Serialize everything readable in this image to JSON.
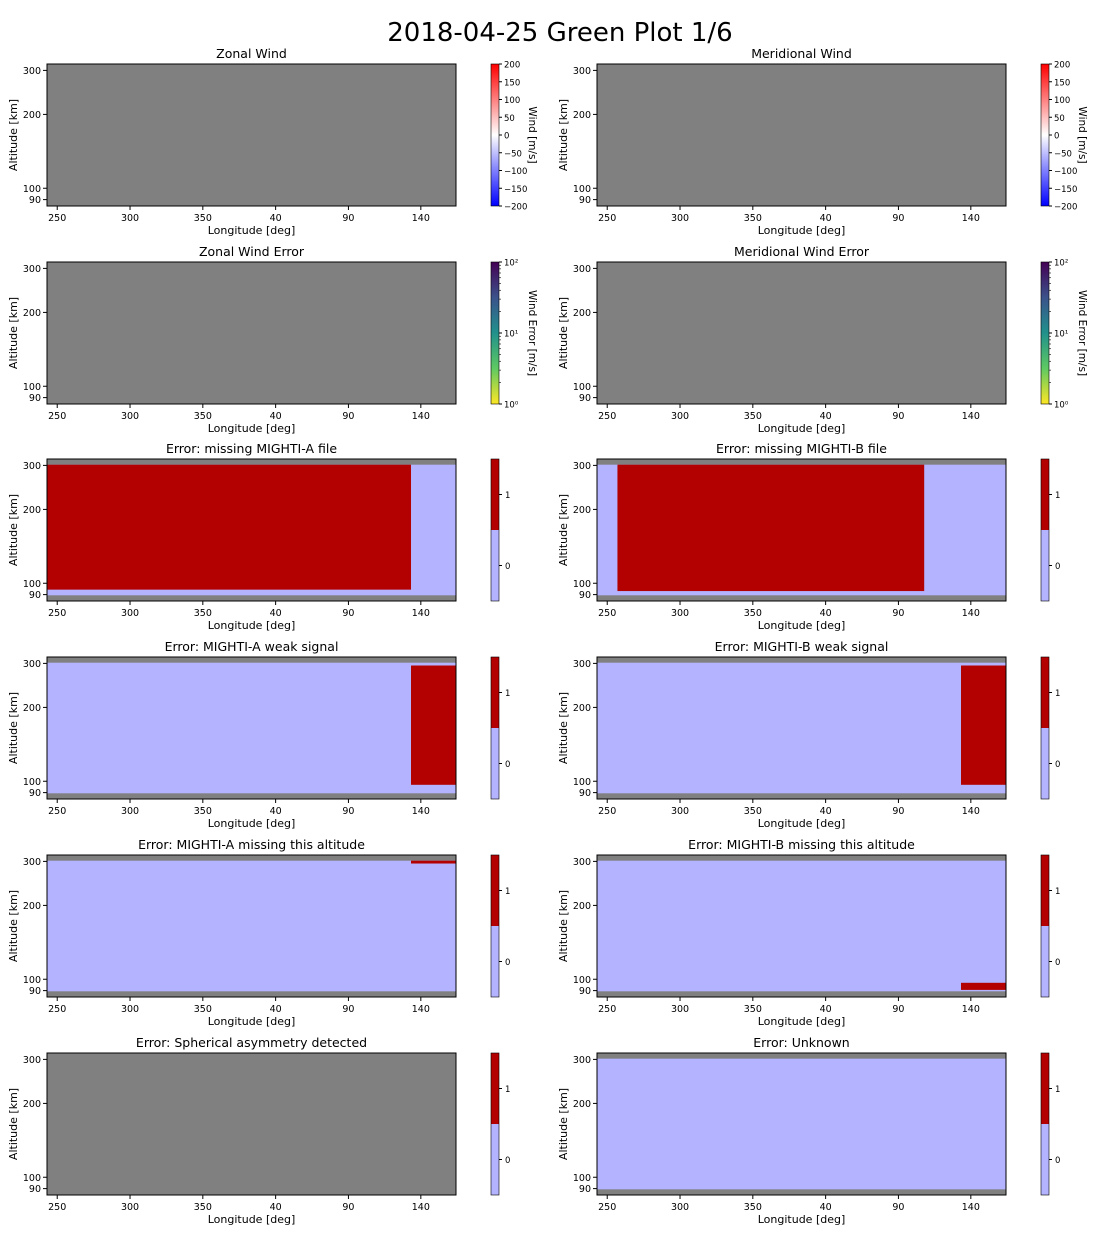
{
  "figure": {
    "title": "2018-04-25 Green Plot 1/6"
  },
  "common": {
    "xlabel": "Longitude [deg]",
    "ylabel": "Altitude [km]",
    "xticks": [
      "250",
      "300",
      "350",
      "40",
      "90",
      "140"
    ],
    "yticks": [
      "90",
      "100",
      "200",
      "300"
    ],
    "colors": {
      "no_data": "#808080",
      "flag_off": "#b3b3ff",
      "flag_on": "#b30000",
      "axes_edge": "#000000"
    }
  },
  "chart_data": [
    {
      "type": "heatmap",
      "title": "Zonal Wind",
      "colorbar": {
        "kind": "wind",
        "label": "Wind [m/s]",
        "ticks": [
          "200",
          "150",
          "100",
          "50",
          "0",
          "−50",
          "−100",
          "−150",
          "−200"
        ],
        "range": [
          -200,
          200
        ]
      },
      "fill": "no_data",
      "regions": []
    },
    {
      "type": "heatmap",
      "title": "Meridional Wind",
      "colorbar": {
        "kind": "wind",
        "label": "Wind [m/s]",
        "ticks": [
          "200",
          "150",
          "100",
          "50",
          "0",
          "−50",
          "−100",
          "−150",
          "−200"
        ],
        "range": [
          -200,
          200
        ]
      },
      "fill": "no_data",
      "regions": []
    },
    {
      "type": "heatmap",
      "title": "Zonal Wind Error",
      "colorbar": {
        "kind": "error",
        "label": "Wind Error [m/s]",
        "ticks": [
          "10²",
          "10¹",
          "10⁰"
        ],
        "range": [
          1,
          100
        ],
        "scale": "log"
      },
      "fill": "no_data",
      "regions": []
    },
    {
      "type": "heatmap",
      "title": "Meridional Wind Error",
      "colorbar": {
        "kind": "error",
        "label": "Wind Error [m/s]",
        "ticks": [
          "10²",
          "10¹",
          "10⁰"
        ],
        "range": [
          1,
          100
        ],
        "scale": "log"
      },
      "fill": "no_data",
      "regions": []
    },
    {
      "type": "heatmap",
      "title": "Error: missing MIGHTI-A file",
      "colorbar": {
        "kind": "flag",
        "label": "",
        "ticks": [
          "1",
          "0"
        ]
      },
      "fill": "flag_off",
      "regions": [
        {
          "flag": 1,
          "x0": 0.0,
          "x1": 0.89,
          "y0": 0.04,
          "y1": 0.92
        }
      ]
    },
    {
      "type": "heatmap",
      "title": "Error: missing MIGHTI-B file",
      "colorbar": {
        "kind": "flag",
        "label": "",
        "ticks": [
          "1",
          "0"
        ]
      },
      "fill": "flag_off",
      "regions": [
        {
          "flag": 1,
          "x0": 0.05,
          "x1": 0.8,
          "y0": 0.04,
          "y1": 0.93
        }
      ]
    },
    {
      "type": "heatmap",
      "title": "Error: MIGHTI-A weak signal",
      "colorbar": {
        "kind": "flag",
        "label": "",
        "ticks": [
          "1",
          "0"
        ]
      },
      "fill": "flag_off",
      "regions": [
        {
          "flag": 1,
          "x0": 0.89,
          "x1": 1.0,
          "y0": 0.06,
          "y1": 0.9
        }
      ]
    },
    {
      "type": "heatmap",
      "title": "Error: MIGHTI-B weak signal",
      "colorbar": {
        "kind": "flag",
        "label": "",
        "ticks": [
          "1",
          "0"
        ]
      },
      "fill": "flag_off",
      "regions": [
        {
          "flag": 1,
          "x0": 0.89,
          "x1": 1.0,
          "y0": 0.06,
          "y1": 0.9
        }
      ]
    },
    {
      "type": "heatmap",
      "title": "Error: MIGHTI-A missing this altitude",
      "colorbar": {
        "kind": "flag",
        "label": "",
        "ticks": [
          "1",
          "0"
        ]
      },
      "fill": "flag_off",
      "regions": [
        {
          "flag": 1,
          "x0": 0.89,
          "x1": 1.0,
          "y0": 0.04,
          "y1": 0.06
        }
      ]
    },
    {
      "type": "heatmap",
      "title": "Error: MIGHTI-B missing this altitude",
      "colorbar": {
        "kind": "flag",
        "label": "",
        "ticks": [
          "1",
          "0"
        ]
      },
      "fill": "flag_off",
      "regions": [
        {
          "flag": 1,
          "x0": 0.89,
          "x1": 1.0,
          "y0": 0.9,
          "y1": 0.95
        }
      ]
    },
    {
      "type": "heatmap",
      "title": "Error: Spherical asymmetry detected",
      "colorbar": {
        "kind": "flag",
        "label": "",
        "ticks": [
          "1",
          "0"
        ]
      },
      "fill": "no_data",
      "regions": []
    },
    {
      "type": "heatmap",
      "title": "Error: Unknown",
      "colorbar": {
        "kind": "flag",
        "label": "",
        "ticks": [
          "1",
          "0"
        ]
      },
      "fill": "flag_off",
      "regions": []
    }
  ]
}
